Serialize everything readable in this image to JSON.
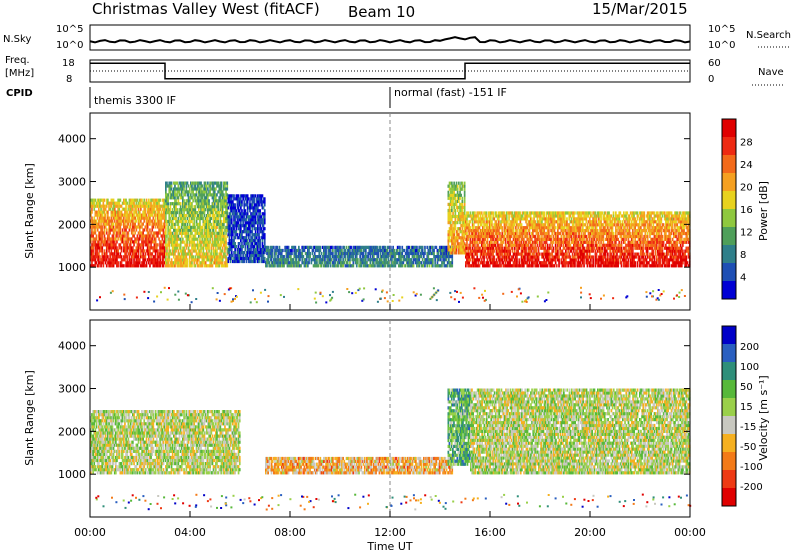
{
  "header": {
    "station": "Christmas Valley West (fitACF)",
    "beam": "Beam 10",
    "date": "15/Mar/2015"
  },
  "nsky_panel": {
    "label": "N.Sky",
    "y_ticks": [
      "10^5",
      "10^0"
    ],
    "right_ticks": [
      "10^5",
      "10^0"
    ],
    "right_label": "N.Search",
    "nsky_level": 0.35
  },
  "freq_panel": {
    "label_line1": "Freq.",
    "label_line2": "[MHz]",
    "y_ticks": [
      "18",
      "8"
    ],
    "right_ticks": [
      "60",
      "0"
    ],
    "right_label": "Nave",
    "freq_steps": [
      {
        "start": 0,
        "end": 3.0,
        "level": 0.85
      },
      {
        "start": 3.0,
        "end": 15.0,
        "level": 0.15
      },
      {
        "start": 15.0,
        "end": 24,
        "level": 0.85
      }
    ]
  },
  "cpid_panel": {
    "label": "CPID",
    "modes": [
      {
        "start_hour": 0.2,
        "text": "themis 3300 IF"
      },
      {
        "start_hour": 12.0,
        "text": "normal (fast) -151 IF"
      }
    ]
  },
  "chart_data": [
    {
      "type": "heatmap",
      "title": "",
      "ylabel": "Slant Range [km]",
      "xlabel": "",
      "x_range": [
        0,
        24
      ],
      "ylim": [
        0,
        4600
      ],
      "y_ticks": [
        "1000",
        "2000",
        "3000",
        "4000"
      ],
      "colorbar": {
        "label": "Power [dB]",
        "ticks": [
          "28",
          "24",
          "20",
          "16",
          "12",
          "8",
          "4"
        ],
        "colors": [
          "#0000d4",
          "#1e4fb4",
          "#2f7f8a",
          "#4f9f5a",
          "#8fc83f",
          "#e8d21e",
          "#f5a020",
          "#f36a1a",
          "#ee2a12",
          "#e00000"
        ]
      },
      "regions": [
        {
          "x0": 0.0,
          "x1": 3.0,
          "y0": 1000,
          "y1": 2600,
          "level": 0.95
        },
        {
          "x0": 3.0,
          "x1": 5.5,
          "y0": 1000,
          "y1": 3000,
          "level": 0.6
        },
        {
          "x0": 5.5,
          "x1": 7.0,
          "y0": 1100,
          "y1": 2700,
          "level": 0.15
        },
        {
          "x0": 7.0,
          "x1": 14.5,
          "y0": 1000,
          "y1": 1500,
          "level": 0.3
        },
        {
          "x0": 14.3,
          "x1": 15.0,
          "y0": 1300,
          "y1": 3000,
          "level": 0.7
        },
        {
          "x0": 15.0,
          "x1": 24.0,
          "y0": 1000,
          "y1": 2300,
          "level": 0.95
        }
      ]
    },
    {
      "type": "heatmap",
      "title": "",
      "ylabel": "Slant Range [km]",
      "xlabel": "Time UT",
      "x_range": [
        0,
        24
      ],
      "ylim": [
        0,
        4600
      ],
      "y_ticks": [
        "1000",
        "2000",
        "3000",
        "4000"
      ],
      "x_ticks": [
        "00:00",
        "04:00",
        "08:00",
        "12:00",
        "16:00",
        "20:00",
        "00:00"
      ],
      "colorbar": {
        "label": "Velocity [m s⁻¹]",
        "ticks": [
          "200",
          "100",
          "50",
          "15",
          "-15",
          "-50",
          "-100",
          "-200"
        ],
        "colors": [
          "#0000c8",
          "#2a5fc0",
          "#2f8f7a",
          "#57b83a",
          "#9ad04a",
          "#c8c8c0",
          "#f5b020",
          "#f37a18",
          "#ee3a14",
          "#e00000"
        ]
      },
      "regions": [
        {
          "x0": 0.0,
          "x1": 6.0,
          "y0": 1000,
          "y1": 2500,
          "level": 0.5
        },
        {
          "x0": 7.0,
          "x1": 14.5,
          "y0": 1000,
          "y1": 1400,
          "level": 0.35
        },
        {
          "x0": 14.3,
          "x1": 15.2,
          "y0": 1200,
          "y1": 3000,
          "level": 0.65
        },
        {
          "x0": 15.2,
          "x1": 24.0,
          "y0": 1000,
          "y1": 3000,
          "level": 0.5
        }
      ]
    }
  ]
}
